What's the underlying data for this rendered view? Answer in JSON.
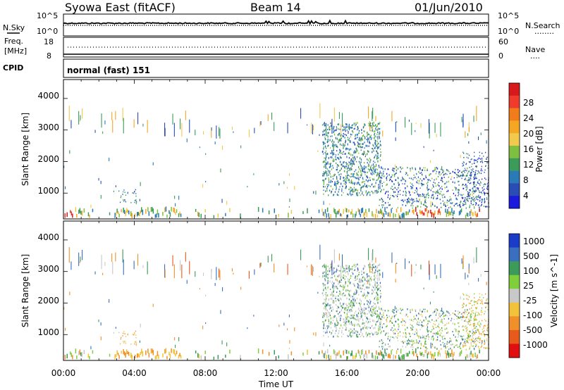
{
  "header": {
    "title": "Syowa East (fitACF)",
    "beam": "Beam 14",
    "date": "01/Jun/2010"
  },
  "noise_panel": {
    "left_label": "N.Sky",
    "right_label": "N.Search",
    "right_marker": "........",
    "left_ticks": [
      "10^5",
      "10^0"
    ],
    "right_ticks": [
      "10^5",
      "10^0"
    ]
  },
  "freq_panel": {
    "left_label_1": "Freq.",
    "left_label_2": "[MHz]",
    "right_label": "Nave",
    "right_marker": "....",
    "left_ticks": [
      "18",
      "8"
    ],
    "right_ticks": [
      "60",
      "0"
    ]
  },
  "cpid_panel": {
    "label": "CPID",
    "value": "normal (fast) 151"
  },
  "x_axis": {
    "label": "Time UT",
    "ticks": [
      "00:00",
      "04:00",
      "08:00",
      "12:00",
      "16:00",
      "20:00",
      "00:00"
    ]
  },
  "chart_data": [
    {
      "type": "heatmap",
      "name": "power",
      "ylabel": "Slant Range [km]",
      "yticks": [
        "4000",
        "3000",
        "2000",
        "1000"
      ],
      "ylim": [
        180,
        4600
      ],
      "xlim_hours": [
        0,
        24
      ],
      "colorbar": {
        "label": "Power [dB]",
        "ticks": [
          "28",
          "24",
          "20",
          "16",
          "12",
          "8",
          "4"
        ],
        "colors": [
          "#d7191c",
          "#ef3b2c",
          "#f07c1a",
          "#f5a623",
          "#f2c94c",
          "#7fbf3f",
          "#3b9c5a",
          "#2a7ab8",
          "#2a4db5",
          "#1a1adc"
        ]
      }
    },
    {
      "type": "heatmap",
      "name": "velocity",
      "ylabel": "Slant Range [km]",
      "yticks": [
        "4000",
        "3000",
        "2000",
        "1000"
      ],
      "ylim": [
        180,
        4600
      ],
      "xlim_hours": [
        0,
        24
      ],
      "colorbar": {
        "label": "Velocity [m s^-1]",
        "ticks": [
          "1000",
          "500",
          "100",
          "25",
          "-25",
          "-100",
          "-500",
          "-1000"
        ],
        "colors": [
          "#1a3cc8",
          "#3a6fc0",
          "#3c9a5a",
          "#7fcf3a",
          "#c8c8c8",
          "#f2c23a",
          "#f0902a",
          "#e85a1a",
          "#e01010"
        ]
      }
    }
  ]
}
